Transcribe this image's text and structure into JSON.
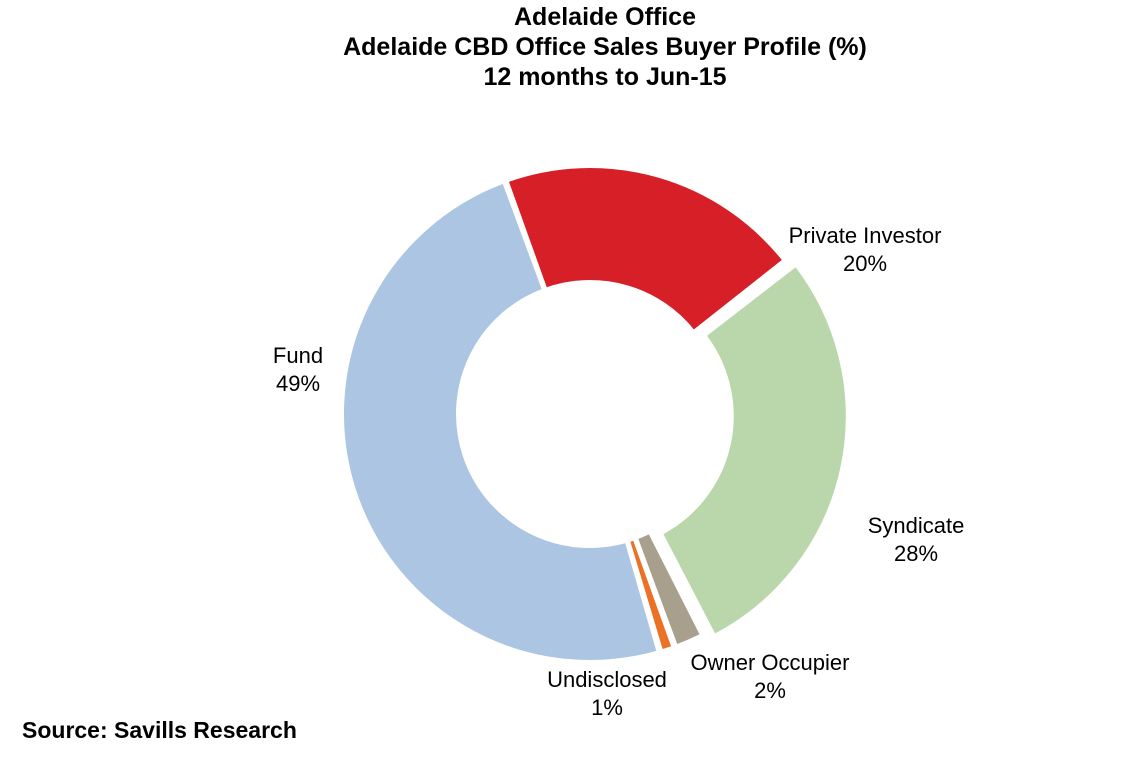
{
  "chart_data": {
    "type": "pie",
    "donut": true,
    "title": "Adelaide Office",
    "subtitle": "Adelaide CBD Office Sales Buyer Profile (%)",
    "period": "12 months to Jun-15",
    "slices": [
      {
        "name": "Private Investor",
        "value_label": "20%",
        "value": 20,
        "color": "#D71F28"
      },
      {
        "name": "Syndicate",
        "value_label": "28%",
        "value": 28,
        "color": "#B9D7AA"
      },
      {
        "name": "Owner Occupier",
        "value_label": "2%",
        "value": 2,
        "color": "#A8A08D"
      },
      {
        "name": "Undisclosed",
        "value_label": "1%",
        "value": 1,
        "color": "#EA7125"
      },
      {
        "name": "Fund",
        "value_label": "49%",
        "value": 49,
        "color": "#ABC5E2"
      }
    ],
    "legend": "none"
  },
  "source": "Source: Savills Research"
}
